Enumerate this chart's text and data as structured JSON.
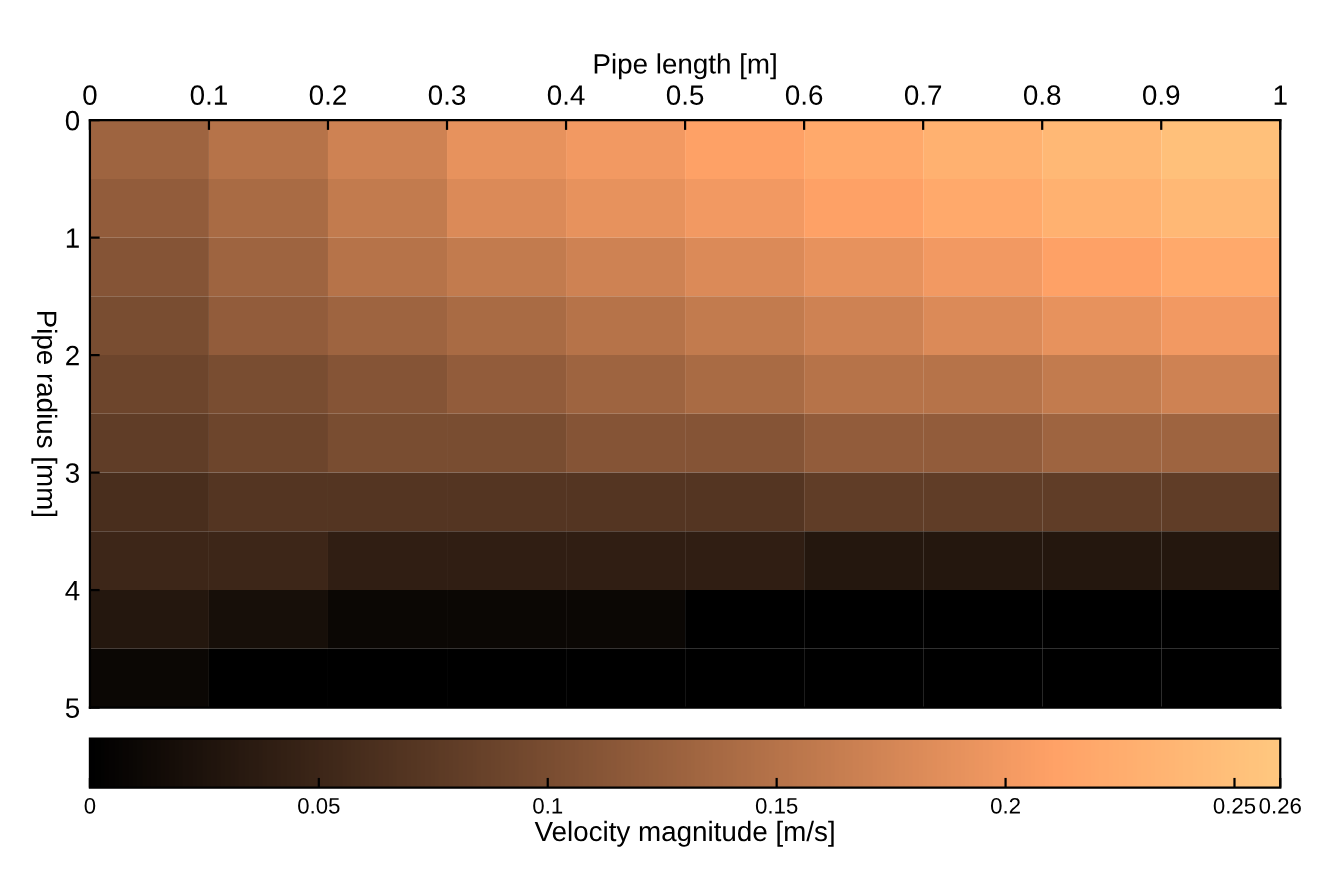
{
  "chart_data": {
    "type": "heatmap",
    "xlabel": "Pipe length [m]",
    "ylabel": "Pipe radius [mm]",
    "clabel": "Velocity magnitude [m/s]",
    "xlim": [
      0,
      1
    ],
    "xticks": [
      0,
      0.1,
      0.2,
      0.3,
      0.4,
      0.5,
      0.6,
      0.7,
      0.8,
      0.9,
      1
    ],
    "ylim": [
      5,
      0
    ],
    "yticks": [
      0,
      1,
      2,
      3,
      4,
      5
    ],
    "clim": [
      0,
      0.26
    ],
    "cticks": [
      0,
      0.05,
      0.1,
      0.15,
      0.2,
      0.25,
      0.26
    ],
    "cells": [
      [
        0.13,
        0.15,
        0.17,
        0.19,
        0.2,
        0.21,
        0.22,
        0.23,
        0.24,
        0.25
      ],
      [
        0.12,
        0.14,
        0.16,
        0.18,
        0.19,
        0.2,
        0.21,
        0.22,
        0.23,
        0.24
      ],
      [
        0.11,
        0.13,
        0.15,
        0.16,
        0.17,
        0.18,
        0.19,
        0.2,
        0.21,
        0.22
      ],
      [
        0.1,
        0.12,
        0.13,
        0.14,
        0.15,
        0.16,
        0.17,
        0.18,
        0.19,
        0.2
      ],
      [
        0.09,
        0.1,
        0.11,
        0.12,
        0.13,
        0.14,
        0.15,
        0.15,
        0.16,
        0.17
      ],
      [
        0.08,
        0.09,
        0.1,
        0.1,
        0.11,
        0.11,
        0.12,
        0.12,
        0.13,
        0.13
      ],
      [
        0.06,
        0.07,
        0.07,
        0.07,
        0.07,
        0.07,
        0.08,
        0.08,
        0.08,
        0.08
      ],
      [
        0.05,
        0.05,
        0.04,
        0.04,
        0.04,
        0.04,
        0.03,
        0.03,
        0.03,
        0.03
      ],
      [
        0.03,
        0.02,
        0.01,
        0.01,
        0.01,
        0,
        0,
        0,
        0,
        0
      ],
      [
        0.01,
        0,
        0,
        0,
        0,
        0,
        0,
        0,
        0,
        0
      ]
    ]
  }
}
